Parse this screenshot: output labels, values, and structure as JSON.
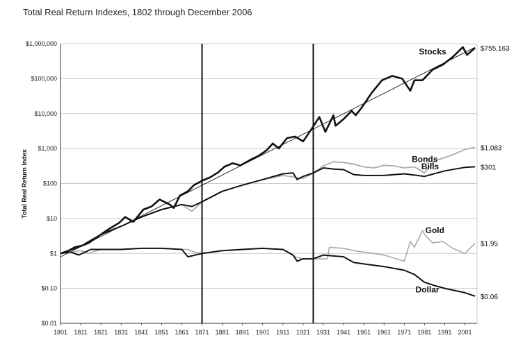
{
  "chart_data": {
    "type": "line",
    "title": "Total Real Return Indexes, 1802 through December 2006",
    "ylabel": "Total Real Return Index",
    "xlabel": "",
    "yscale": "log",
    "xlim": [
      1801,
      2007
    ],
    "ylim": [
      0.01,
      1000000
    ],
    "grid": "horizontal",
    "y_ticks": [
      {
        "value": 1000000,
        "label": "$1,000,000"
      },
      {
        "value": 100000,
        "label": "$100,000"
      },
      {
        "value": 10000,
        "label": "$10,000"
      },
      {
        "value": 1000,
        "label": "$1,000"
      },
      {
        "value": 100,
        "label": "$100"
      },
      {
        "value": 10,
        "label": "$10"
      },
      {
        "value": 1,
        "label": "$1"
      },
      {
        "value": 0.1,
        "label": "$0.10"
      },
      {
        "value": 0.01,
        "label": "$0.01"
      }
    ],
    "x_ticks": [
      "1801",
      "1811",
      "1821",
      "1831",
      "1841",
      "1851",
      "1861",
      "1871",
      "1881",
      "1891",
      "1901",
      "1911",
      "1921",
      "1931",
      "1941",
      "1951",
      "1961",
      "1971",
      "1981",
      "1991",
      "2001"
    ],
    "vertical_lines": [
      1871,
      1926
    ],
    "series": [
      {
        "name": "Stocks",
        "end_label": "$755,163",
        "color": "#111111",
        "width": 2.6,
        "x": [
          1801,
          1805,
          1808,
          1812,
          1815,
          1820,
          1825,
          1830,
          1833,
          1837,
          1842,
          1846,
          1850,
          1855,
          1857,
          1860,
          1864,
          1867,
          1871,
          1875,
          1879,
          1882,
          1886,
          1890,
          1895,
          1899,
          1903,
          1906,
          1909,
          1913,
          1917,
          1921,
          1925,
          1929,
          1932,
          1936,
          1937,
          1941,
          1945,
          1947,
          1950,
          1955,
          1960,
          1965,
          1970,
          1974,
          1976,
          1980,
          1985,
          1990,
          1995,
          2000,
          2002,
          2006
        ],
        "y": [
          1.0,
          1.2,
          1.5,
          1.7,
          2.0,
          3.2,
          5.0,
          7.5,
          11,
          8,
          18,
          22,
          35,
          25,
          20,
          45,
          60,
          90,
          120,
          150,
          210,
          300,
          380,
          330,
          480,
          620,
          900,
          1400,
          1000,
          2000,
          2200,
          1600,
          3500,
          8000,
          3000,
          9000,
          4500,
          7000,
          12000,
          9000,
          15000,
          40000,
          90000,
          120000,
          100000,
          45000,
          90000,
          90000,
          180000,
          250000,
          420000,
          800000,
          480000,
          755163
        ]
      },
      {
        "name": "Trend",
        "color": "#111111",
        "width": 0.9,
        "x": [
          1801,
          2006
        ],
        "y": [
          0.8,
          790000
        ]
      },
      {
        "name": "Bonds",
        "end_label": "$1,083",
        "color": "#aaaaaa",
        "width": 1.8,
        "x": [
          1801,
          1811,
          1821,
          1831,
          1841,
          1851,
          1861,
          1866,
          1871,
          1881,
          1891,
          1901,
          1911,
          1921,
          1926,
          1931,
          1936,
          1941,
          1946,
          1951,
          1956,
          1961,
          1966,
          1971,
          1976,
          1981,
          1986,
          1991,
          1996,
          2001,
          2006
        ],
        "y": [
          1.0,
          1.6,
          3.5,
          6,
          11,
          18,
          25,
          16,
          30,
          60,
          90,
          130,
          170,
          140,
          200,
          320,
          420,
          400,
          360,
          300,
          280,
          330,
          320,
          280,
          300,
          200,
          450,
          550,
          700,
          950,
          1083
        ]
      },
      {
        "name": "Bills",
        "end_label": "$301",
        "color": "#111111",
        "width": 2.0,
        "x": [
          1801,
          1811,
          1821,
          1831,
          1841,
          1851,
          1861,
          1866,
          1871,
          1881,
          1891,
          1901,
          1911,
          1916,
          1918,
          1921,
          1926,
          1931,
          1936,
          1941,
          1946,
          1951,
          1961,
          1971,
          1981,
          1991,
          2001,
          2006
        ],
        "y": [
          1.0,
          1.6,
          3.5,
          6,
          11,
          18,
          25,
          22,
          30,
          60,
          90,
          130,
          190,
          200,
          130,
          160,
          200,
          280,
          260,
          250,
          180,
          170,
          170,
          190,
          160,
          230,
          290,
          301
        ]
      },
      {
        "name": "Gold",
        "end_label": "$1.95",
        "color": "#aaaaaa",
        "width": 1.6,
        "x": [
          1801,
          1811,
          1815,
          1821,
          1831,
          1841,
          1851,
          1861,
          1864,
          1867,
          1871,
          1881,
          1891,
          1901,
          1911,
          1917,
          1921,
          1926,
          1933,
          1934,
          1941,
          1946,
          1951,
          1961,
          1971,
          1974,
          1976,
          1980,
          1981,
          1985,
          1990,
          1995,
          2001,
          2006
        ],
        "y": [
          1.0,
          1.2,
          1.0,
          1.3,
          1.3,
          1.4,
          1.4,
          1.3,
          1.3,
          1.1,
          1.0,
          1.2,
          1.3,
          1.4,
          1.3,
          0.8,
          0.7,
          0.7,
          0.7,
          1.5,
          1.4,
          1.2,
          1.1,
          0.9,
          0.6,
          2.2,
          1.5,
          4.5,
          3.5,
          2.0,
          2.2,
          1.4,
          1.0,
          1.95
        ]
      },
      {
        "name": "Dollar",
        "end_label": "$0.06",
        "color": "#111111",
        "width": 2.0,
        "x": [
          1801,
          1806,
          1810,
          1816,
          1821,
          1831,
          1841,
          1851,
          1861,
          1864,
          1871,
          1881,
          1891,
          1901,
          1911,
          1916,
          1918,
          1921,
          1926,
          1931,
          1941,
          1946,
          1951,
          1961,
          1971,
          1976,
          1981,
          1986,
          1991,
          2001,
          2006
        ],
        "y": [
          1.0,
          1.1,
          0.9,
          1.3,
          1.3,
          1.3,
          1.4,
          1.4,
          1.3,
          0.8,
          1.0,
          1.2,
          1.3,
          1.4,
          1.3,
          0.9,
          0.6,
          0.7,
          0.7,
          0.9,
          0.8,
          0.55,
          0.5,
          0.42,
          0.33,
          0.25,
          0.15,
          0.12,
          0.1,
          0.075,
          0.06
        ]
      }
    ]
  }
}
